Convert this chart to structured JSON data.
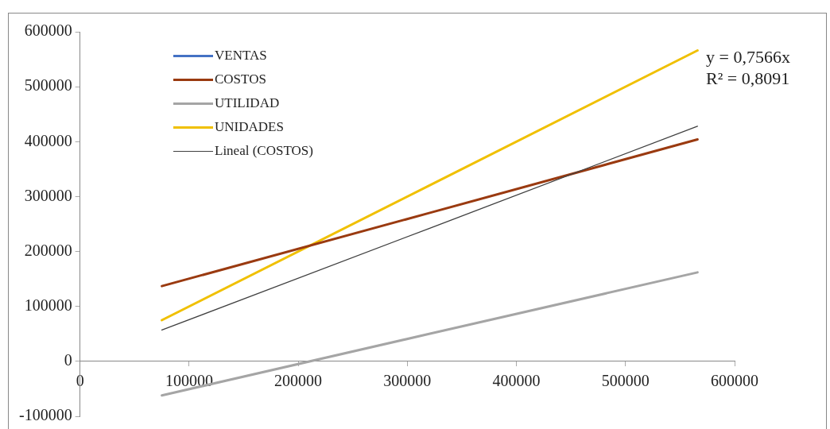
{
  "chart_data": {
    "type": "line",
    "x": [
      75000,
      320000,
      566000
    ],
    "series": [
      {
        "name": "VENTAS",
        "color": "#4472c4",
        "values": [
          null,
          null,
          null
        ]
      },
      {
        "name": "COSTOS",
        "color": "#9a3a10",
        "values": [
          137000,
          270000,
          404000
        ]
      },
      {
        "name": "UTILIDAD",
        "color": "#a5a5a5",
        "values": [
          -62000,
          50000,
          162000
        ]
      },
      {
        "name": "UNIDADES",
        "color": "#f0c000",
        "values": [
          75000,
          320000,
          566000
        ]
      },
      {
        "name": "Lineal (COSTOS)",
        "color": "#404040",
        "line_style": "solid",
        "values": [
          57000,
          242000,
          428000
        ]
      }
    ],
    "xlim": [
      0,
      600000
    ],
    "xticks": [
      0,
      100000,
      200000,
      300000,
      400000,
      500000,
      600000
    ],
    "ylim": [
      -100000,
      600000
    ],
    "yticks": [
      -100000,
      0,
      100000,
      200000,
      300000,
      400000,
      500000,
      600000
    ],
    "grid": false,
    "legend": "top left",
    "marker": "none",
    "annotations": [
      "y = 0,7566x",
      "R² = 0,8091"
    ]
  }
}
